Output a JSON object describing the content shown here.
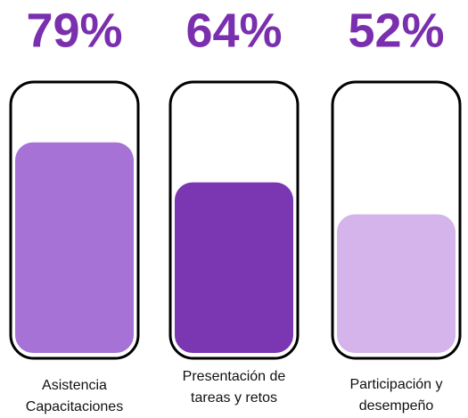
{
  "chart_data": {
    "type": "bar",
    "categories": [
      "Asistencia\nCapacitaciones",
      "Presentación de\ntareas y retos",
      "Participación y\ndesempeño"
    ],
    "values": [
      79,
      64,
      52
    ],
    "value_labels": [
      "79%",
      "64%",
      "52%"
    ],
    "colors": [
      "#a672d6",
      "#7b36b1",
      "#d4b4ea"
    ],
    "label_color": "#7a2fae",
    "ylim": [
      0,
      100
    ]
  }
}
